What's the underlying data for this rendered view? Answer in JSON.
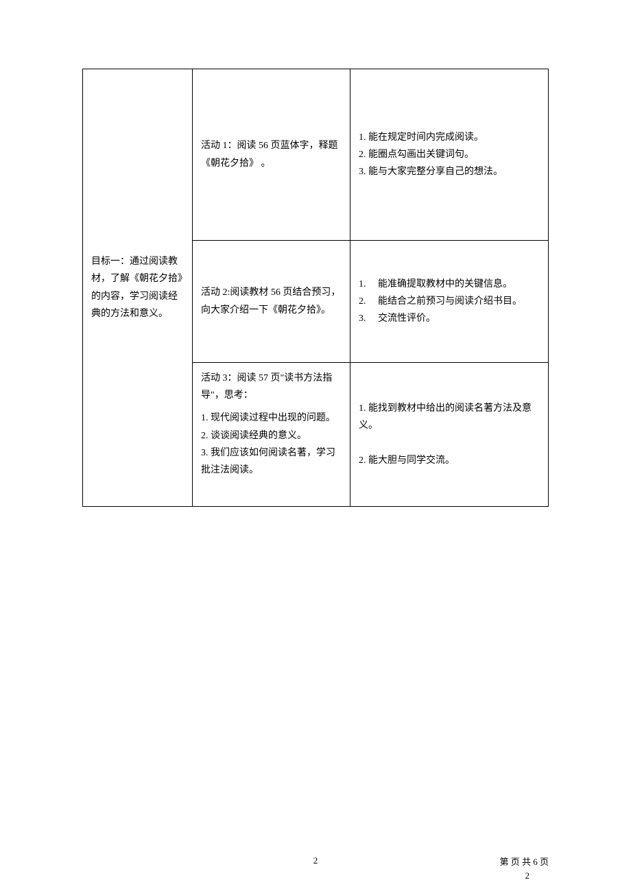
{
  "table": {
    "goal": "目标一：通过阅读教材，了解《朝花夕拾》的内容，学习阅读经典的方法和意义。",
    "rows": [
      {
        "activity": "活动 1：阅读 56 页蓝体字，释题《朝花夕拾》 。",
        "criteria_lines": [
          "1. 能在规定时间内完成阅读。",
          "2. 能圈点勾画出关键词句。",
          "3. 能与大家完整分享自己的想法。"
        ]
      },
      {
        "activity": "活动 2:阅读教材 56 页结合预习，向大家介绍一下《朝花夕拾》。",
        "criteria_ordered": [
          {
            "num": "1.",
            "text": "能准确提取教材中的关键信息。"
          },
          {
            "num": "2.",
            "text": "能结合之前预习与阅读介绍书目。"
          },
          {
            "num": "3.",
            "text": "交流性评价。"
          }
        ]
      },
      {
        "activity_heading": "活动 3：阅读 57 页\"读书方法指导\"，思考：",
        "activity_sub": [
          "1. 现代阅读过程中出现的问题。",
          "2. 谈谈阅读经典的意义。",
          "3. 我们应该如何阅读名著，学习批注法阅读。"
        ],
        "criteria_lines": [
          "1. 能找到教材中给出的阅读名著方法及意义。",
          "",
          "2. 能大胆与同学交流。"
        ]
      }
    ]
  },
  "footer": {
    "center_page": "2",
    "right_line1": "第   页 共 6 页",
    "right_line2": "2"
  }
}
